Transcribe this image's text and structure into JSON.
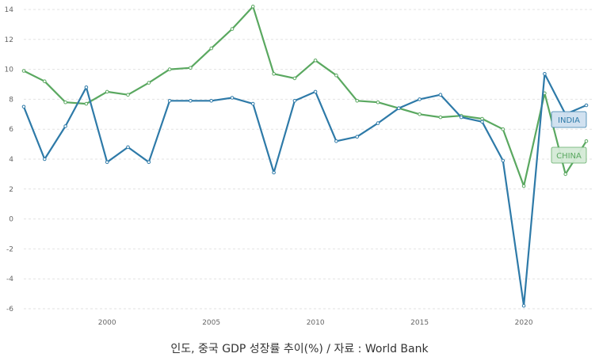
{
  "chart_data": {
    "type": "line",
    "caption": "인도, 중국 GDP 성장률 추이(%) / 자료 : World Bank",
    "ylim": [
      -6,
      14
    ],
    "xlim": [
      1996,
      2023
    ],
    "y_ticks": [
      "14",
      "12",
      "10",
      "8",
      "6",
      "4",
      "2",
      "0",
      "-2",
      "-4",
      "-6"
    ],
    "x_ticks": [
      "2000",
      "2005",
      "2010",
      "2015",
      "2020"
    ],
    "grid": "horizontal dashed",
    "x": [
      1996,
      1997,
      1998,
      1999,
      2000,
      2001,
      2002,
      2003,
      2004,
      2005,
      2006,
      2007,
      2008,
      2009,
      2010,
      2011,
      2012,
      2013,
      2014,
      2015,
      2016,
      2017,
      2018,
      2019,
      2020,
      2021,
      2022,
      2023
    ],
    "series": [
      {
        "name": "INDIA",
        "color": "#2e7aa8",
        "label_bg": "#cfe0f0",
        "values": [
          7.5,
          4.0,
          6.2,
          8.8,
          3.8,
          4.8,
          3.8,
          7.9,
          7.9,
          7.9,
          8.1,
          7.7,
          3.1,
          7.9,
          8.5,
          5.2,
          5.5,
          6.4,
          7.4,
          8.0,
          8.3,
          6.8,
          6.5,
          3.9,
          -5.8,
          9.7,
          7.0,
          7.6
        ]
      },
      {
        "name": "CHINA",
        "color": "#5aa860",
        "label_bg": "#d4ead6",
        "values": [
          9.9,
          9.2,
          7.8,
          7.7,
          8.5,
          8.3,
          9.1,
          10.0,
          10.1,
          11.4,
          12.7,
          14.2,
          9.7,
          9.4,
          10.6,
          9.6,
          7.9,
          7.8,
          7.4,
          7.0,
          6.8,
          6.9,
          6.7,
          6.0,
          2.2,
          8.4,
          3.0,
          5.2
        ]
      }
    ]
  }
}
